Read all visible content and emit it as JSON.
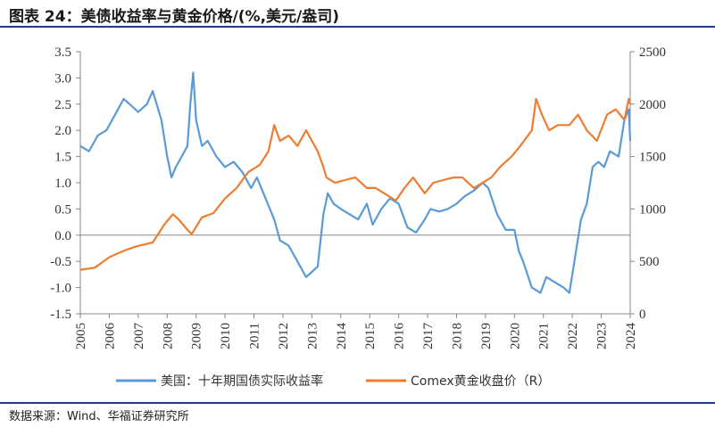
{
  "header": {
    "title": "图表 24：美债收益率与黄金价格/(%,美元/盎司)"
  },
  "footer": {
    "source": "数据来源：Wind、华福证券研究所"
  },
  "chart_data": {
    "type": "line",
    "grid": false,
    "legend_position": "bottom",
    "x_ticks": [
      "2005",
      "2006",
      "2007",
      "2008",
      "2009",
      "2010",
      "2011",
      "2012",
      "2013",
      "2014",
      "2015",
      "2016",
      "2017",
      "2018",
      "2019",
      "2020",
      "2021",
      "2022",
      "2023",
      "2024"
    ],
    "x_range": [
      2005,
      2024
    ],
    "y_left": {
      "range": [
        -1.5,
        3.5
      ],
      "ticks": [
        "3.5",
        "3.0",
        "2.5",
        "2.0",
        "1.5",
        "1.0",
        "0.5",
        "0.0",
        "-0.5",
        "-1.0",
        "-1.5"
      ]
    },
    "y_right": {
      "range": [
        0,
        2500
      ],
      "ticks": [
        "2500",
        "2000",
        "1500",
        "1000",
        "500",
        "0"
      ]
    },
    "series": [
      {
        "name": "美国：十年期国债实际收益率",
        "axis": "left",
        "color": "#5b9bd5",
        "x": [
          2005.0,
          2005.3,
          2005.6,
          2005.9,
          2006.2,
          2006.5,
          2006.8,
          2007.0,
          2007.3,
          2007.5,
          2007.8,
          2008.0,
          2008.15,
          2008.3,
          2008.5,
          2008.7,
          2008.8,
          2008.9,
          2009.0,
          2009.2,
          2009.4,
          2009.7,
          2010.0,
          2010.3,
          2010.6,
          2010.9,
          2011.1,
          2011.4,
          2011.7,
          2011.9,
          2012.2,
          2012.5,
          2012.8,
          2013.0,
          2013.2,
          2013.4,
          2013.55,
          2013.75,
          2014.0,
          2014.3,
          2014.6,
          2014.9,
          2015.1,
          2015.4,
          2015.7,
          2016.0,
          2016.3,
          2016.6,
          2016.9,
          2017.1,
          2017.4,
          2017.7,
          2018.0,
          2018.3,
          2018.6,
          2018.9,
          2019.1,
          2019.4,
          2019.7,
          2020.0,
          2020.15,
          2020.3,
          2020.6,
          2020.9,
          2021.1,
          2021.4,
          2021.7,
          2021.9,
          2022.1,
          2022.3,
          2022.5,
          2022.7,
          2022.9,
          2023.1,
          2023.3,
          2023.6,
          2023.8,
          2023.95,
          2024.0
        ],
        "y": [
          1.7,
          1.6,
          1.9,
          2.0,
          2.3,
          2.6,
          2.45,
          2.35,
          2.5,
          2.75,
          2.2,
          1.5,
          1.1,
          1.3,
          1.5,
          1.7,
          2.5,
          3.1,
          2.2,
          1.7,
          1.8,
          1.5,
          1.3,
          1.4,
          1.2,
          0.9,
          1.1,
          0.7,
          0.3,
          -0.1,
          -0.2,
          -0.5,
          -0.8,
          -0.7,
          -0.6,
          0.4,
          0.8,
          0.6,
          0.5,
          0.4,
          0.3,
          0.6,
          0.2,
          0.5,
          0.7,
          0.6,
          0.15,
          0.05,
          0.3,
          0.5,
          0.45,
          0.5,
          0.6,
          0.75,
          0.85,
          1.0,
          0.9,
          0.4,
          0.1,
          0.1,
          -0.3,
          -0.5,
          -1.0,
          -1.1,
          -0.8,
          -0.9,
          -1.0,
          -1.1,
          -0.4,
          0.3,
          0.6,
          1.3,
          1.4,
          1.3,
          1.6,
          1.5,
          2.2,
          2.4,
          1.8
        ]
      },
      {
        "name": "Comex黄金收盘价（R）",
        "axis": "right",
        "color": "#ed7d31",
        "x": [
          2005.0,
          2005.5,
          2006.0,
          2006.5,
          2006.9,
          2007.5,
          2007.9,
          2008.2,
          2008.4,
          2008.7,
          2008.85,
          2009.2,
          2009.6,
          2010.0,
          2010.4,
          2010.8,
          2011.2,
          2011.5,
          2011.7,
          2011.9,
          2012.2,
          2012.5,
          2012.8,
          2013.0,
          2013.2,
          2013.4,
          2013.5,
          2013.8,
          2014.2,
          2014.5,
          2014.9,
          2015.2,
          2015.5,
          2015.9,
          2016.2,
          2016.5,
          2016.9,
          2017.2,
          2017.6,
          2017.9,
          2018.2,
          2018.6,
          2018.9,
          2019.2,
          2019.5,
          2019.9,
          2020.2,
          2020.6,
          2020.75,
          2020.95,
          2021.2,
          2021.5,
          2021.9,
          2022.2,
          2022.5,
          2022.85,
          2023.2,
          2023.5,
          2023.8,
          2023.95,
          2024.0
        ],
        "y": [
          420,
          440,
          540,
          600,
          640,
          680,
          850,
          950,
          900,
          800,
          760,
          920,
          960,
          1100,
          1200,
          1350,
          1420,
          1550,
          1800,
          1650,
          1700,
          1600,
          1750,
          1650,
          1550,
          1400,
          1300,
          1250,
          1280,
          1300,
          1200,
          1200,
          1150,
          1080,
          1200,
          1300,
          1150,
          1250,
          1280,
          1300,
          1300,
          1200,
          1250,
          1300,
          1400,
          1500,
          1600,
          1750,
          2050,
          1900,
          1750,
          1800,
          1800,
          1900,
          1750,
          1650,
          1900,
          1950,
          1850,
          2050,
          2000
        ]
      }
    ]
  }
}
